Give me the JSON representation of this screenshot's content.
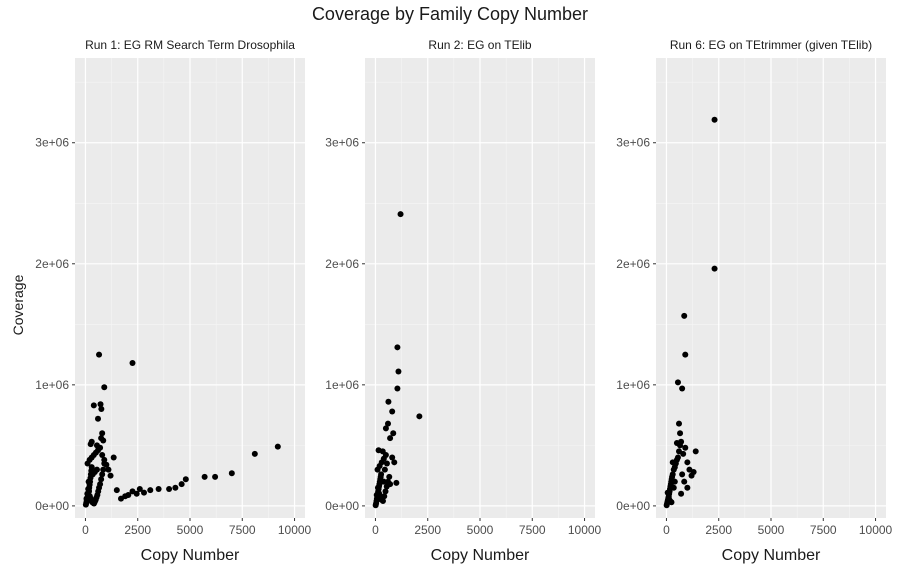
{
  "figure": {
    "title": "Coverage by Family Copy Number",
    "ylabel": "Coverage"
  },
  "chart_data": [
    {
      "type": "scatter",
      "title": "Run 1: EG RM Search Term Drosophila",
      "xlabel": "Copy Number",
      "ylabel": "Coverage",
      "xlim": [
        -500,
        10500
      ],
      "ylim": [
        -100000,
        3700000
      ],
      "xticks": [
        0,
        2500,
        5000,
        7500,
        10000
      ],
      "yticks": [
        0,
        1000000,
        2000000,
        3000000
      ],
      "ytick_labels": [
        "0e+00",
        "1e+06",
        "2e+06",
        "3e+06"
      ],
      "points": [
        [
          20,
          10000
        ],
        [
          40,
          25000
        ],
        [
          60,
          40000
        ],
        [
          80,
          55000
        ],
        [
          100,
          70000
        ],
        [
          120,
          90000
        ],
        [
          140,
          110000
        ],
        [
          160,
          130000
        ],
        [
          180,
          150000
        ],
        [
          200,
          175000
        ],
        [
          220,
          200000
        ],
        [
          240,
          230000
        ],
        [
          260,
          260000
        ],
        [
          280,
          290000
        ],
        [
          300,
          320000
        ],
        [
          50,
          60000
        ],
        [
          90,
          100000
        ],
        [
          130,
          140000
        ],
        [
          170,
          120000
        ],
        [
          210,
          80000
        ],
        [
          250,
          60000
        ],
        [
          290,
          40000
        ],
        [
          330,
          30000
        ],
        [
          370,
          25000
        ],
        [
          410,
          20000
        ],
        [
          450,
          35000
        ],
        [
          490,
          50000
        ],
        [
          530,
          70000
        ],
        [
          570,
          90000
        ],
        [
          610,
          120000
        ],
        [
          650,
          150000
        ],
        [
          700,
          180000
        ],
        [
          750,
          220000
        ],
        [
          800,
          260000
        ],
        [
          850,
          300000
        ],
        [
          900,
          350000
        ],
        [
          150,
          200000
        ],
        [
          350,
          260000
        ],
        [
          450,
          280000
        ],
        [
          550,
          300000
        ],
        [
          100,
          350000
        ],
        [
          200,
          380000
        ],
        [
          300,
          400000
        ],
        [
          400,
          420000
        ],
        [
          500,
          440000
        ],
        [
          600,
          460000
        ],
        [
          700,
          480000
        ],
        [
          800,
          420000
        ],
        [
          900,
          380000
        ],
        [
          1000,
          340000
        ],
        [
          1100,
          300000
        ],
        [
          1200,
          250000
        ],
        [
          1350,
          400000
        ],
        [
          1500,
          130000
        ],
        [
          1700,
          60000
        ],
        [
          1900,
          80000
        ],
        [
          2050,
          90000
        ],
        [
          2250,
          120000
        ],
        [
          2450,
          100000
        ],
        [
          2600,
          140000
        ],
        [
          2800,
          110000
        ],
        [
          3100,
          130000
        ],
        [
          3500,
          140000
        ],
        [
          4000,
          140000
        ],
        [
          4300,
          150000
        ],
        [
          4600,
          180000
        ],
        [
          4800,
          220000
        ],
        [
          5700,
          240000
        ],
        [
          6200,
          240000
        ],
        [
          7000,
          270000
        ],
        [
          8100,
          430000
        ],
        [
          9200,
          490000
        ],
        [
          2250,
          1180000
        ],
        [
          650,
          1250000
        ],
        [
          900,
          980000
        ],
        [
          720,
          840000
        ],
        [
          760,
          800000
        ],
        [
          400,
          830000
        ],
        [
          600,
          720000
        ],
        [
          800,
          600000
        ],
        [
          300,
          530000
        ],
        [
          250,
          510000
        ],
        [
          750,
          560000
        ],
        [
          850,
          540000
        ],
        [
          550,
          500000
        ]
      ]
    },
    {
      "type": "scatter",
      "title": "Run 2: EG on TElib",
      "xlabel": "Copy Number",
      "ylabel": "Coverage",
      "xlim": [
        -500,
        10500
      ],
      "ylim": [
        -100000,
        3700000
      ],
      "xticks": [
        0,
        2500,
        5000,
        7500,
        10000
      ],
      "yticks": [
        0,
        1000000,
        2000000,
        3000000
      ],
      "ytick_labels": [
        "0e+00",
        "1e+06",
        "2e+06",
        "3e+06"
      ],
      "points": [
        [
          10,
          5000
        ],
        [
          30,
          20000
        ],
        [
          50,
          40000
        ],
        [
          70,
          60000
        ],
        [
          90,
          80000
        ],
        [
          110,
          100000
        ],
        [
          130,
          120000
        ],
        [
          150,
          140000
        ],
        [
          170,
          160000
        ],
        [
          190,
          180000
        ],
        [
          210,
          200000
        ],
        [
          230,
          220000
        ],
        [
          250,
          240000
        ],
        [
          270,
          260000
        ],
        [
          60,
          90000
        ],
        [
          120,
          150000
        ],
        [
          180,
          100000
        ],
        [
          240,
          70000
        ],
        [
          300,
          50000
        ],
        [
          360,
          40000
        ],
        [
          420,
          80000
        ],
        [
          480,
          120000
        ],
        [
          540,
          160000
        ],
        [
          600,
          200000
        ],
        [
          660,
          240000
        ],
        [
          100,
          300000
        ],
        [
          200,
          330000
        ],
        [
          300,
          360000
        ],
        [
          400,
          390000
        ],
        [
          500,
          420000
        ],
        [
          150,
          460000
        ],
        [
          350,
          450000
        ],
        [
          450,
          300000
        ],
        [
          550,
          350000
        ],
        [
          700,
          180000
        ],
        [
          800,
          400000
        ],
        [
          900,
          360000
        ],
        [
          1000,
          190000
        ],
        [
          620,
          860000
        ],
        [
          500,
          640000
        ],
        [
          600,
          680000
        ],
        [
          800,
          780000
        ],
        [
          1050,
          970000
        ],
        [
          1100,
          1110000
        ],
        [
          1050,
          1310000
        ],
        [
          1200,
          2410000
        ],
        [
          2100,
          740000
        ],
        [
          850,
          600000
        ],
        [
          700,
          560000
        ],
        [
          400,
          200000
        ]
      ]
    },
    {
      "type": "scatter",
      "title": "Run 6: EG on TEtrimmer (given TElib)",
      "xlabel": "Copy Number",
      "ylabel": "Coverage",
      "xlim": [
        -500,
        10500
      ],
      "ylim": [
        -100000,
        3700000
      ],
      "xticks": [
        0,
        2500,
        5000,
        7500,
        10000
      ],
      "yticks": [
        0,
        1000000,
        2000000,
        3000000
      ],
      "ytick_labels": [
        "0e+00",
        "1e+06",
        "2e+06",
        "3e+06"
      ],
      "points": [
        [
          10,
          5000
        ],
        [
          30,
          20000
        ],
        [
          50,
          35000
        ],
        [
          70,
          50000
        ],
        [
          90,
          65000
        ],
        [
          110,
          80000
        ],
        [
          130,
          100000
        ],
        [
          150,
          120000
        ],
        [
          170,
          140000
        ],
        [
          190,
          160000
        ],
        [
          210,
          180000
        ],
        [
          230,
          200000
        ],
        [
          250,
          220000
        ],
        [
          270,
          240000
        ],
        [
          60,
          110000
        ],
        [
          120,
          60000
        ],
        [
          180,
          40000
        ],
        [
          240,
          30000
        ],
        [
          300,
          260000
        ],
        [
          350,
          300000
        ],
        [
          400,
          320000
        ],
        [
          450,
          350000
        ],
        [
          500,
          380000
        ],
        [
          550,
          400000
        ],
        [
          600,
          450000
        ],
        [
          650,
          500000
        ],
        [
          700,
          530000
        ],
        [
          800,
          430000
        ],
        [
          900,
          480000
        ],
        [
          1000,
          360000
        ],
        [
          1100,
          300000
        ],
        [
          1200,
          250000
        ],
        [
          1400,
          450000
        ],
        [
          1300,
          280000
        ],
        [
          600,
          680000
        ],
        [
          650,
          600000
        ],
        [
          500,
          520000
        ],
        [
          300,
          360000
        ],
        [
          400,
          200000
        ],
        [
          750,
          260000
        ],
        [
          850,
          200000
        ],
        [
          2300,
          3190000
        ],
        [
          2300,
          1960000
        ],
        [
          850,
          1570000
        ],
        [
          900,
          1250000
        ],
        [
          750,
          970000
        ],
        [
          550,
          1020000
        ],
        [
          1000,
          150000
        ],
        [
          350,
          150000
        ],
        [
          700,
          100000
        ]
      ]
    }
  ]
}
